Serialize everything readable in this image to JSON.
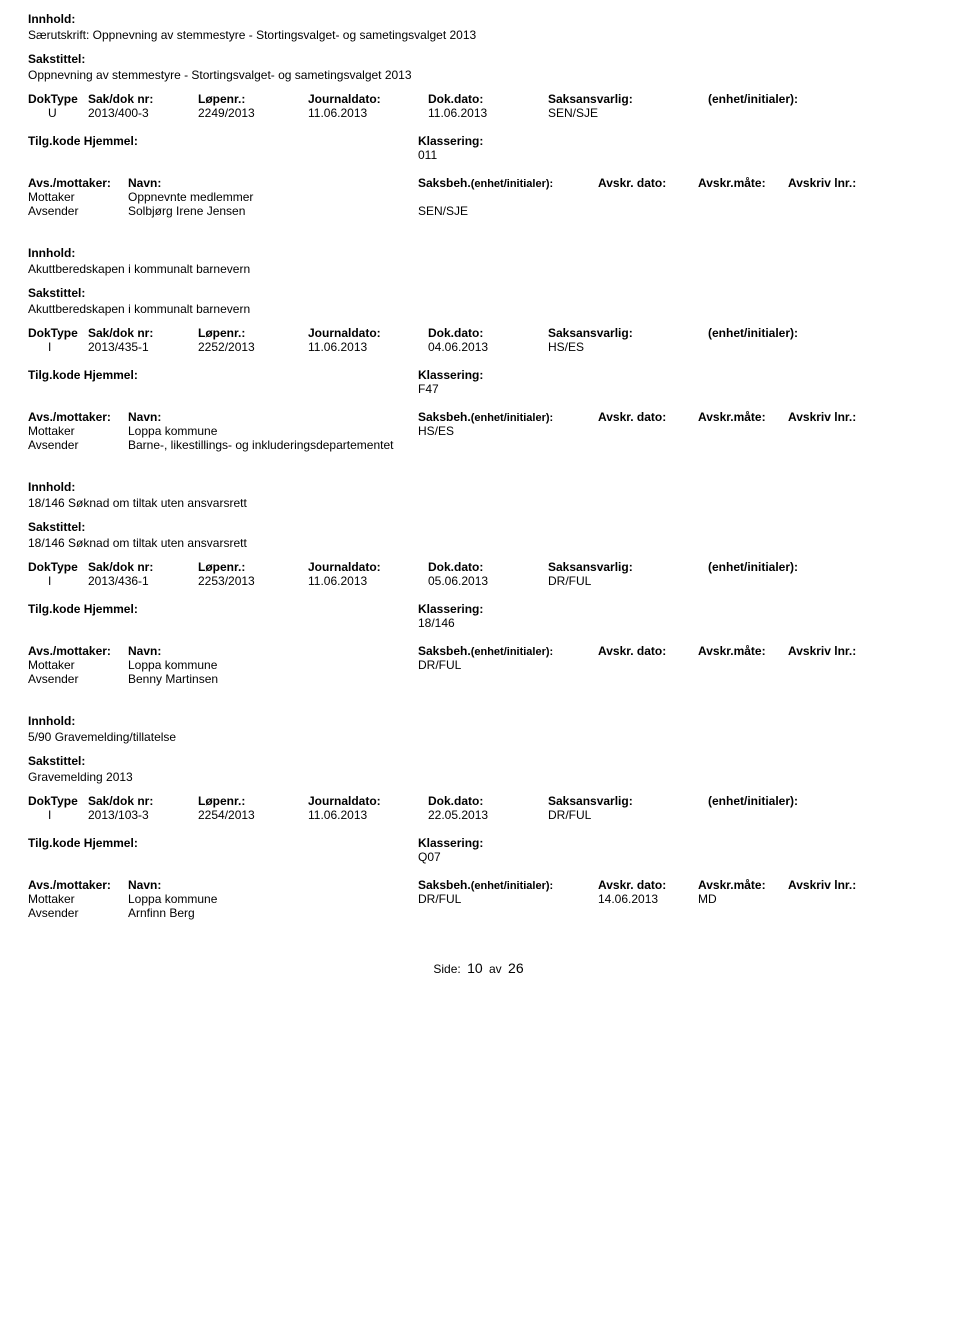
{
  "labels": {
    "innhold": "Innhold:",
    "sakstittel": "Sakstittel:",
    "doktype": "DokType",
    "sakdoknr": "Sak/dok nr:",
    "lopenr": "Løpenr.:",
    "journaldato": "Journaldato:",
    "dokdato": "Dok.dato:",
    "saksansvarlig": "Saksansvarlig:",
    "enhet": "(enhet/initialer):",
    "tilgkode": "Tilg.kode",
    "hjemmel": "Hjemmel:",
    "klassering": "Klassering:",
    "avs_mottaker": "Avs./mottaker:",
    "navn": "Navn:",
    "saksbeh": "Saksbeh.",
    "saksbeh_enhet": "(enhet/initialer):",
    "avskr_dato": "Avskr. dato:",
    "avskr_mate": "Avskr.måte:",
    "avskriv_lnr": "Avskriv lnr.:",
    "mottaker": "Mottaker",
    "avsender": "Avsender"
  },
  "records": [
    {
      "innhold": "Særutskrift: Oppnevning av stemmestyre - Stortingsvalget- og sametingsvalget 2013",
      "sakstittel": "Oppnevning av stemmestyre - Stortingsvalget- og sametingsvalget 2013",
      "doktype": "U",
      "sakdoknr": "2013/400-3",
      "lopenr": "2249/2013",
      "jdate": "11.06.2013",
      "ddate": "11.06.2013",
      "ansvarlig": "SEN/SJE",
      "klassering": "011",
      "parties": [
        {
          "role": "Mottaker",
          "name": "Oppnevnte medlemmer",
          "sbeh": "",
          "avdt": "",
          "avmt": "",
          "avlnr": ""
        },
        {
          "role": "Avsender",
          "name": "Solbjørg Irene Jensen",
          "sbeh": "SEN/SJE",
          "avdt": "",
          "avmt": "",
          "avlnr": ""
        }
      ]
    },
    {
      "innhold": "Akuttberedskapen i kommunalt barnevern",
      "sakstittel": "Akuttberedskapen i kommunalt barnevern",
      "doktype": "I",
      "sakdoknr": "2013/435-1",
      "lopenr": "2252/2013",
      "jdate": "11.06.2013",
      "ddate": "04.06.2013",
      "ansvarlig": "HS/ES",
      "klassering": "F47",
      "parties": [
        {
          "role": "Mottaker",
          "name": "Loppa kommune",
          "sbeh": "HS/ES",
          "avdt": "",
          "avmt": "",
          "avlnr": ""
        },
        {
          "role": "Avsender",
          "name": "Barne-, likestillings- og inkluderingsdepartementet",
          "sbeh": "",
          "avdt": "",
          "avmt": "",
          "avlnr": ""
        }
      ]
    },
    {
      "innhold": "18/146 Søknad om tiltak uten ansvarsrett",
      "sakstittel": "18/146 Søknad om tiltak uten ansvarsrett",
      "doktype": "I",
      "sakdoknr": "2013/436-1",
      "lopenr": "2253/2013",
      "jdate": "11.06.2013",
      "ddate": "05.06.2013",
      "ansvarlig": "DR/FUL",
      "klassering": "18/146",
      "parties": [
        {
          "role": "Mottaker",
          "name": "Loppa kommune",
          "sbeh": "DR/FUL",
          "avdt": "",
          "avmt": "",
          "avlnr": ""
        },
        {
          "role": "Avsender",
          "name": "Benny Martinsen",
          "sbeh": "",
          "avdt": "",
          "avmt": "",
          "avlnr": ""
        }
      ]
    },
    {
      "innhold": "5/90 Gravemelding/tillatelse",
      "sakstittel": "Gravemelding 2013",
      "doktype": "I",
      "sakdoknr": "2013/103-3",
      "lopenr": "2254/2013",
      "jdate": "11.06.2013",
      "ddate": "22.05.2013",
      "ansvarlig": "DR/FUL",
      "klassering": "Q07",
      "parties": [
        {
          "role": "Mottaker",
          "name": "Loppa kommune",
          "sbeh": "DR/FUL",
          "avdt": "14.06.2013",
          "avmt": "MD",
          "avlnr": ""
        },
        {
          "role": "Avsender",
          "name": "Arnfinn Berg",
          "sbeh": "",
          "avdt": "",
          "avmt": "",
          "avlnr": ""
        }
      ]
    }
  ],
  "footer": {
    "side": "Side:",
    "page": "10",
    "av": "av",
    "total": "26"
  }
}
